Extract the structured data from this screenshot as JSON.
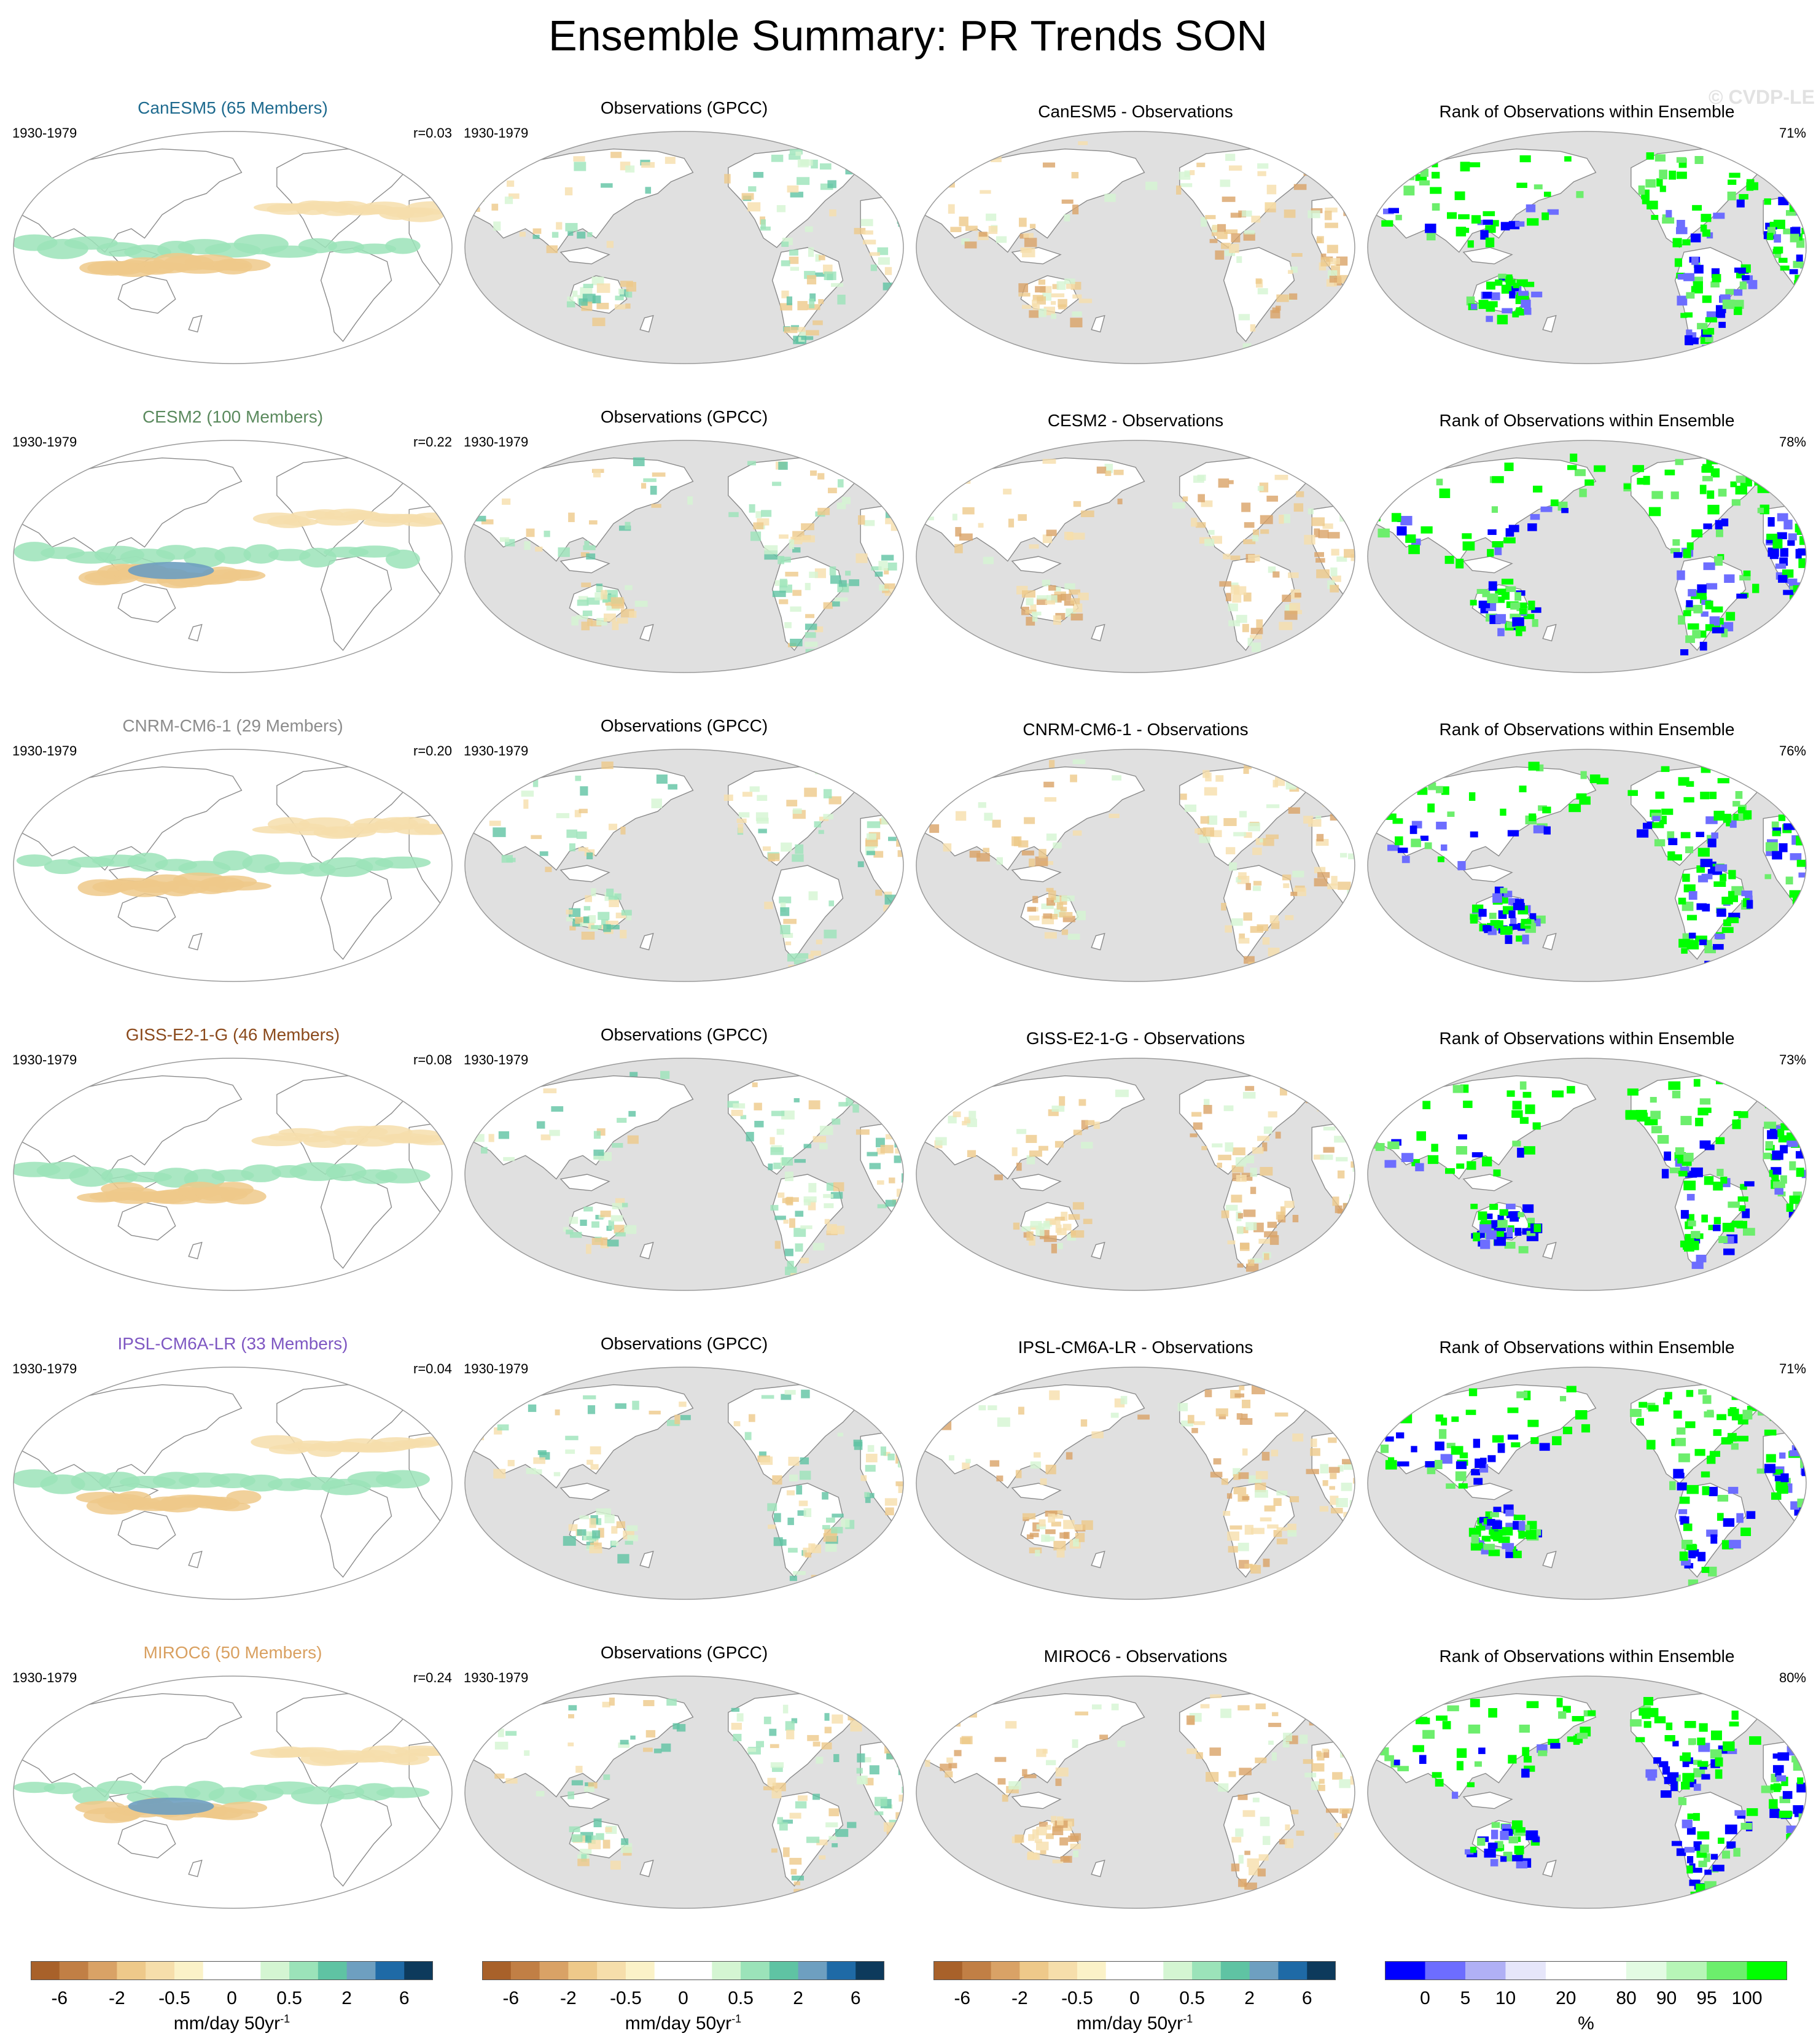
{
  "title": "Ensemble Summary: PR Trends SON",
  "watermark": "© CVDP-LE",
  "colors": {
    "ocean_gray": "#e0e0e0",
    "coast": "#8a8a8a",
    "diverging": [
      "#a8612a",
      "#c17f45",
      "#d9a266",
      "#eec98a",
      "#f6deab",
      "#fbf2c8",
      "#ffffff",
      "#ffffff",
      "#d4f5d2",
      "#9be3b9",
      "#5fc3a3",
      "#6e9fc0",
      "#1f6aa6",
      "#0d3a5c"
    ],
    "rank": [
      "#0000ff",
      "#6d6dff",
      "#b0b0f5",
      "#e6e6fa",
      "#ffffff",
      "#ffffff",
      "#e3fbe3",
      "#b7f5b7",
      "#6cee6c",
      "#00ff00"
    ]
  },
  "chart_data": {
    "type": "heatmap",
    "rows": [
      {
        "model": "CanESM5",
        "members": "65 Members",
        "model_title": "CanESM5 (65 Members)",
        "title_color": "#1f6b8f",
        "period": "1930-1979",
        "r": "r=0.03",
        "obs_title": "Observations (GPCC)",
        "diff_title": "CanESM5 - Observations",
        "rank_title": "Rank of Observations within Ensemble",
        "rank_pct": "71%"
      },
      {
        "model": "CESM2",
        "members": "100 Members",
        "model_title": "CESM2 (100 Members)",
        "title_color": "#5b8a5e",
        "period": "1930-1979",
        "r": "r=0.22",
        "obs_title": "Observations (GPCC)",
        "diff_title": "CESM2 - Observations",
        "rank_title": "Rank of Observations within Ensemble",
        "rank_pct": "78%"
      },
      {
        "model": "CNRM-CM6-1",
        "members": "29 Members",
        "model_title": "CNRM-CM6-1 (29 Members)",
        "title_color": "#8c8c8c",
        "period": "1930-1979",
        "r": "r=0.20",
        "obs_title": "Observations (GPCC)",
        "diff_title": "CNRM-CM6-1 - Observations",
        "rank_title": "Rank of Observations within Ensemble",
        "rank_pct": "76%"
      },
      {
        "model": "GISS-E2-1-G",
        "members": "46 Members",
        "model_title": "GISS-E2-1-G (46 Members)",
        "title_color": "#8b4a1c",
        "period": "1930-1979",
        "r": "r=0.08",
        "obs_title": "Observations (GPCC)",
        "diff_title": "GISS-E2-1-G - Observations",
        "rank_title": "Rank of Observations within Ensemble",
        "rank_pct": "73%"
      },
      {
        "model": "IPSL-CM6A-LR",
        "members": "33 Members",
        "model_title": "IPSL-CM6A-LR (33 Members)",
        "title_color": "#7e57c2",
        "period": "1930-1979",
        "r": "r=0.04",
        "obs_title": "Observations (GPCC)",
        "diff_title": "IPSL-CM6A-LR - Observations",
        "rank_title": "Rank of Observations within Ensemble",
        "rank_pct": "71%"
      },
      {
        "model": "MIROC6",
        "members": "50 Members",
        "model_title": "MIROC6 (50 Members)",
        "title_color": "#d9a060",
        "period": "1930-1979",
        "r": "r=0.24",
        "obs_title": "Observations (GPCC)",
        "diff_title": "MIROC6 - Observations",
        "rank_title": "Rank of Observations within Ensemble",
        "rank_pct": "80%"
      }
    ],
    "colorbars": [
      {
        "ticks": [
          "-6",
          "-2",
          "-0.5",
          "0",
          "0.5",
          "2",
          "6"
        ],
        "units": "mm/day 50yr",
        "units_sup": "-1"
      },
      {
        "ticks": [
          "-6",
          "-2",
          "-0.5",
          "0",
          "0.5",
          "2",
          "6"
        ],
        "units": "mm/day 50yr",
        "units_sup": "-1"
      },
      {
        "ticks": [
          "-6",
          "-2",
          "-0.5",
          "0",
          "0.5",
          "2",
          "6"
        ],
        "units": "mm/day 50yr",
        "units_sup": "-1"
      },
      {
        "ticks": [
          "0",
          "5",
          "10",
          "20",
          "80",
          "90",
          "95",
          "100"
        ],
        "units": "%",
        "units_sup": ""
      }
    ]
  }
}
